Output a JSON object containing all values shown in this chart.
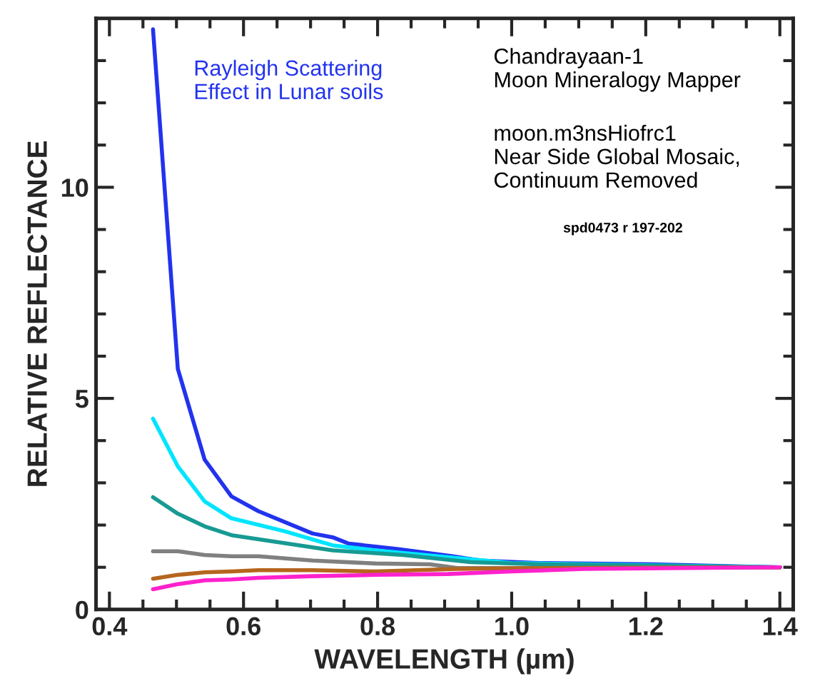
{
  "chart_data": {
    "type": "line",
    "xlabel": "WAVELENGTH (µm)",
    "ylabel": "RELATIVE REFLECTANCE",
    "annotations": [
      "Rayleigh Scattering\nEffect in Lunar soils",
      "Chandrayaan-1\nMoon Mineralogy Mapper",
      "moon.m3nsHiofrc1\nNear Side Global Mosaic,\nContinuum Removed",
      "spd0473 r 197-202"
    ],
    "series": [
      {
        "color": "#2233ee",
        "x": [
          0.465,
          0.502,
          0.542,
          0.582,
          0.622,
          0.703,
          0.733,
          0.757,
          0.831,
          0.912,
          0.953,
          1.04,
          1.209,
          1.4
        ],
        "values": [
          13.74,
          5.7,
          3.55,
          2.68,
          2.33,
          1.8,
          1.71,
          1.56,
          1.43,
          1.26,
          1.16,
          1.1,
          1.07,
          1.0
        ]
      },
      {
        "color": "#00e5ff",
        "x": [
          0.465,
          0.502,
          0.542,
          0.582,
          0.662,
          0.733,
          0.797,
          0.905,
          1.0,
          1.108,
          1.4
        ],
        "values": [
          4.52,
          3.39,
          2.56,
          2.16,
          1.85,
          1.52,
          1.4,
          1.24,
          1.1,
          1.07,
          1.0
        ]
      },
      {
        "color": "#179a93",
        "x": [
          0.465,
          0.502,
          0.542,
          0.582,
          0.662,
          0.733,
          0.838,
          0.939,
          1.04,
          1.4
        ],
        "values": [
          2.66,
          2.27,
          1.97,
          1.76,
          1.57,
          1.4,
          1.29,
          1.12,
          1.07,
          1.0
        ]
      },
      {
        "color": "#808080",
        "x": [
          0.465,
          0.502,
          0.542,
          0.582,
          0.622,
          0.703,
          0.797,
          0.878,
          0.919,
          1.04,
          1.4
        ],
        "values": [
          1.38,
          1.38,
          1.29,
          1.26,
          1.26,
          1.16,
          1.09,
          1.07,
          0.98,
          0.98,
          1.0
        ]
      },
      {
        "color": "#b5651d",
        "x": [
          0.465,
          0.502,
          0.542,
          0.582,
          0.622,
          0.703,
          0.797,
          0.919,
          1.04,
          1.4
        ],
        "values": [
          0.73,
          0.82,
          0.88,
          0.9,
          0.93,
          0.93,
          0.9,
          0.96,
          0.98,
          1.0
        ]
      },
      {
        "color": "#ff22cc",
        "x": [
          0.465,
          0.502,
          0.542,
          0.582,
          0.622,
          0.703,
          0.797,
          0.905,
          1.0,
          1.108,
          1.4
        ],
        "values": [
          0.48,
          0.6,
          0.69,
          0.71,
          0.75,
          0.79,
          0.82,
          0.84,
          0.9,
          0.96,
          1.0
        ]
      }
    ],
    "xlim": [
      0.38,
      1.42
    ],
    "xticks": [
      0.4,
      {
        "value": 0.45,
        "label": null
      },
      0.6,
      {
        "value": 0.5,
        "label": null
      },
      {
        "value": 0.55,
        "label": null
      },
      {
        "value": 0.65,
        "label": null
      },
      {
        "value": 0.7,
        "label": null
      },
      {
        "value": 0.75,
        "label": null
      },
      0.8,
      {
        "value": 0.85,
        "label": null
      },
      {
        "value": 0.9,
        "label": null
      },
      {
        "value": 0.95,
        "label": null
      },
      {
        "value": 1.0,
        "label": "1.0"
      },
      {
        "value": 1.05,
        "label": null
      },
      {
        "value": 1.1,
        "label": null
      },
      {
        "value": 1.15,
        "label": null
      },
      1.2,
      {
        "value": 1.25,
        "label": null
      },
      {
        "value": 1.3,
        "label": null
      },
      {
        "value": 1.35,
        "label": null
      },
      1.4
    ],
    "ylim": [
      0,
      14
    ],
    "yticks": [
      0,
      {
        "value": 1,
        "label": null
      },
      {
        "value": 2,
        "label": null
      },
      {
        "value": 3,
        "label": null
      },
      {
        "value": 4,
        "label": null
      },
      5,
      {
        "value": 6,
        "label": null
      },
      {
        "value": 7,
        "label": null
      },
      {
        "value": 8,
        "label": null
      },
      {
        "value": 9,
        "label": null
      },
      10,
      {
        "value": 11,
        "label": null
      },
      {
        "value": 12,
        "label": null
      },
      {
        "value": 13,
        "label": null
      }
    ],
    "grid": false,
    "legend": false,
    "marker": "none",
    "line_style": "solid"
  }
}
